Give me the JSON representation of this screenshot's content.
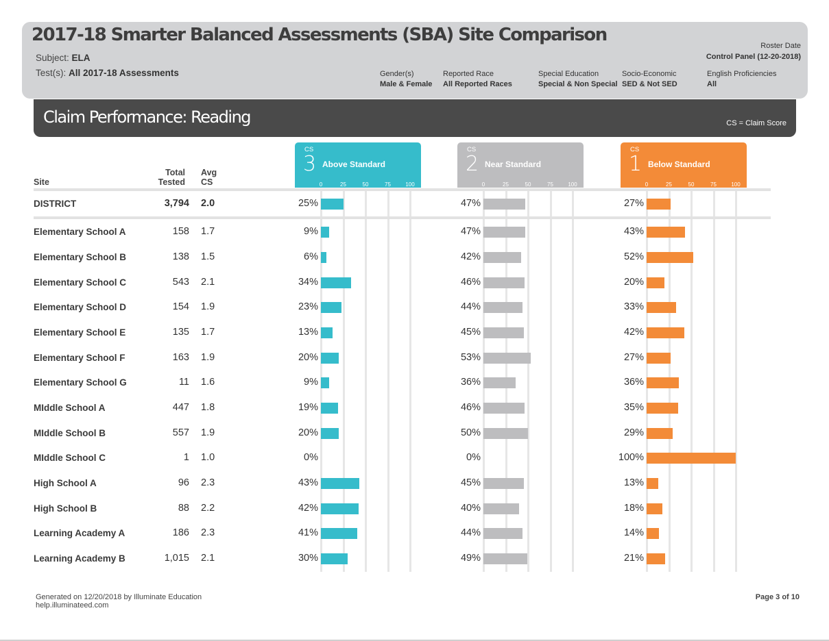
{
  "header": {
    "title": "2017-18 Smarter Balanced Assessments (SBA) Site Comparison",
    "subject_label": "Subject:",
    "subject_value": "ELA",
    "tests_label": "Test(s):",
    "tests_value": "All 2017-18 Assessments",
    "roster_label": "Roster Date",
    "roster_value": "Control Panel (12-20-2018)",
    "filters": [
      {
        "label": "Gender(s)",
        "value": "Male & Female"
      },
      {
        "label": "Reported Race",
        "value": "All Reported Races"
      },
      {
        "label": "Special Education",
        "value": "Special & Non Special"
      },
      {
        "label": "Socio-Economic",
        "value": "SED & Not SED"
      },
      {
        "label": "English Proficiencies",
        "value": "All"
      }
    ]
  },
  "section": {
    "title": "Claim Performance: Reading",
    "note": "CS = Claim Score"
  },
  "columns": {
    "site": "Site",
    "total_line1": "Total",
    "total_line2": "Tested",
    "avg_line1": "Avg",
    "avg_line2": "CS"
  },
  "bands": [
    {
      "cs_label": "CS",
      "cs_num": "3",
      "label": "Above Standard",
      "color": "#36bccb"
    },
    {
      "cs_label": "CS",
      "cs_num": "2",
      "label": "Near Standard",
      "color": "#bdbdbf"
    },
    {
      "cs_label": "CS",
      "cs_num": "1",
      "label": "Below Standard",
      "color": "#f38b38"
    }
  ],
  "ticks": [
    "0",
    "25",
    "50",
    "75",
    "100"
  ],
  "chart_data": {
    "type": "bar",
    "categories": [
      "DISTRICT",
      "Elementary School A",
      "Elementary School B",
      "Elementary School C",
      "Elementary School D",
      "Elementary School E",
      "Elementary School F",
      "Elementary School G",
      "MIddle School A",
      "MIddle School B",
      "MIddle School C",
      "High School A",
      "High School B",
      "Learning Academy A",
      "Learning Academy B"
    ],
    "total_tested": [
      "3,794",
      "158",
      "138",
      "543",
      "154",
      "135",
      "163",
      "11",
      "447",
      "557",
      "1",
      "96",
      "88",
      "186",
      "1,015"
    ],
    "avg_cs": [
      "2.0",
      "1.7",
      "1.5",
      "2.1",
      "1.9",
      "1.7",
      "1.9",
      "1.6",
      "1.8",
      "1.9",
      "1.0",
      "2.3",
      "2.2",
      "2.3",
      "2.1"
    ],
    "series": [
      {
        "name": "Above Standard",
        "values": [
          25,
          9,
          6,
          34,
          23,
          13,
          20,
          9,
          19,
          20,
          0,
          43,
          42,
          41,
          30
        ]
      },
      {
        "name": "Near Standard",
        "values": [
          47,
          47,
          42,
          46,
          44,
          45,
          53,
          36,
          46,
          50,
          0,
          45,
          40,
          44,
          49
        ]
      },
      {
        "name": "Below Standard",
        "values": [
          27,
          43,
          52,
          20,
          33,
          42,
          27,
          36,
          35,
          29,
          100,
          13,
          18,
          14,
          21
        ]
      }
    ],
    "xlim": [
      0,
      100
    ],
    "grid": true
  },
  "footer": {
    "generated": "Generated on 12/20/2018 by Illuminate Education",
    "help": "help.illuminateed.com",
    "page": "Page 3 of 10"
  }
}
